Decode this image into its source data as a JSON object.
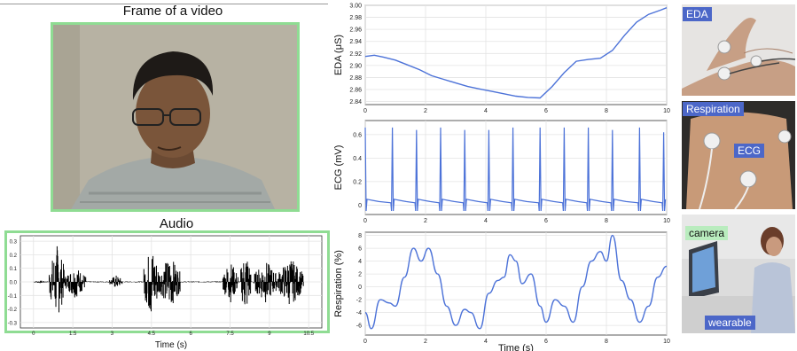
{
  "frame_panel": {
    "title": "Frame of a video"
  },
  "audio_panel": {
    "title": "Audio",
    "xlabel_partial": "Time (s)"
  },
  "photo_panels": {
    "eda_tag": "EDA",
    "respiration_tag": "Respiration",
    "ecg_tag": "ECG",
    "camera_tag": "camera",
    "wearable_tag": "wearable"
  },
  "colors": {
    "signal": "#4c72d8",
    "highlight_border": "#8fdc93",
    "tag_blue": "#4c67c8",
    "tag_green": "#b9ecbe"
  },
  "chart_data": [
    {
      "type": "line",
      "title": "",
      "ylabel": "EDA (μS)",
      "xlim": [
        0,
        10
      ],
      "ylim": [
        2.835,
        3.0
      ],
      "xticks": [
        0,
        2,
        4,
        6,
        8,
        10
      ],
      "yticks": [
        2.84,
        2.86,
        2.88,
        2.9,
        2.92,
        2.94,
        2.96,
        2.98,
        3.0
      ],
      "ytick_labels": [
        "2.84",
        "2.86",
        "2.88",
        "2.90",
        "2.92",
        "2.94",
        "2.96",
        "2.98",
        "3.00"
      ],
      "x": [
        0,
        0.3,
        0.6,
        1.0,
        1.4,
        1.8,
        2.2,
        2.6,
        3.0,
        3.4,
        3.8,
        4.2,
        4.6,
        5.0,
        5.4,
        5.8,
        6.2,
        6.6,
        7.0,
        7.4,
        7.8,
        8.2,
        8.6,
        9.0,
        9.4,
        9.8,
        10.0
      ],
      "y": [
        2.915,
        2.917,
        2.914,
        2.909,
        2.901,
        2.893,
        2.883,
        2.877,
        2.871,
        2.865,
        2.861,
        2.857,
        2.853,
        2.849,
        2.847,
        2.846,
        2.865,
        2.888,
        2.907,
        2.91,
        2.912,
        2.925,
        2.95,
        2.972,
        2.985,
        2.992,
        2.996
      ],
      "grid": true
    },
    {
      "type": "line",
      "title": "",
      "ylabel": "ECG (mV)",
      "xlim": [
        0,
        10
      ],
      "ylim": [
        -0.08,
        0.72
      ],
      "xticks": [
        0,
        2,
        4,
        6,
        8,
        10
      ],
      "yticks": [
        0,
        0.2,
        0.4,
        0.6
      ],
      "ytick_labels": [
        "0",
        "0.2",
        "0.4",
        "0.6"
      ],
      "beat_times": [
        0.0,
        0.9,
        1.7,
        2.5,
        3.3,
        4.1,
        4.9,
        5.8,
        6.6,
        7.4,
        8.2,
        9.1,
        9.9
      ],
      "peak_values": [
        0.66,
        0.66,
        0.64,
        0.66,
        0.64,
        0.64,
        0.66,
        0.66,
        0.66,
        0.66,
        0.64,
        0.66,
        0.62
      ],
      "baseline": 0.02,
      "trough": -0.05,
      "grid": true
    },
    {
      "type": "line",
      "title": "",
      "ylabel": "Respiration (%)",
      "xlabel_partial": "Time (s)",
      "xlim": [
        0,
        10
      ],
      "ylim": [
        -7.5,
        8.5
      ],
      "xticks": [
        0,
        2,
        4,
        6,
        8,
        10
      ],
      "yticks": [
        -6,
        -4,
        -2,
        0,
        2,
        4,
        6,
        8
      ],
      "ytick_labels": [
        "-6",
        "-4",
        "-2",
        "0",
        "2",
        "4",
        "6",
        "8"
      ],
      "x": [
        0,
        0.2,
        0.5,
        0.8,
        1.0,
        1.3,
        1.6,
        1.85,
        2.1,
        2.4,
        2.7,
        3.0,
        3.3,
        3.5,
        3.8,
        4.1,
        4.4,
        4.6,
        4.8,
        5.0,
        5.2,
        5.5,
        5.8,
        6.0,
        6.3,
        6.6,
        6.9,
        7.2,
        7.5,
        7.8,
        8.0,
        8.2,
        8.5,
        8.8,
        9.1,
        9.4,
        9.7,
        10.0
      ],
      "y": [
        -4.0,
        -6.5,
        -2.0,
        -2.5,
        -3.0,
        1.5,
        6.0,
        4.0,
        6.0,
        2.0,
        -3.0,
        -6.0,
        -3.5,
        -4.0,
        -6.5,
        -1.0,
        1.0,
        1.5,
        5.0,
        4.0,
        0.5,
        2.0,
        -3.0,
        -5.5,
        -2.0,
        -3.0,
        -5.5,
        0.0,
        4.0,
        5.5,
        4.0,
        8.0,
        1.0,
        -2.0,
        -5.5,
        -3.0,
        1.5,
        3.2
      ],
      "grid": true
    },
    {
      "type": "line",
      "title": "",
      "xlabel_partial": "Time (s)",
      "xlim": [
        -0.5,
        11.0
      ],
      "ylim": [
        -0.34,
        0.34
      ],
      "xticks": [
        0,
        1.5,
        3,
        4.5,
        6,
        7.5,
        9,
        10.5
      ],
      "xtick_labels": [
        "0",
        "1.5",
        "3",
        "4.5",
        "6",
        "7.5",
        "9",
        "10.5"
      ],
      "yticks": [
        -0.3,
        -0.2,
        -0.1,
        0.0,
        0.1,
        0.2,
        0.3
      ],
      "ytick_labels": [
        "-0.3",
        "-0.2",
        "-0.1",
        "0.0",
        "0.1",
        "0.2",
        "0.3"
      ],
      "bursts": [
        {
          "start": 0.0,
          "end": 0.5,
          "amp": 0.01
        },
        {
          "start": 0.6,
          "end": 1.2,
          "amp": 0.28
        },
        {
          "start": 1.2,
          "end": 2.0,
          "amp": 0.12
        },
        {
          "start": 2.9,
          "end": 3.4,
          "amp": 0.05
        },
        {
          "start": 4.2,
          "end": 4.8,
          "amp": 0.28
        },
        {
          "start": 4.8,
          "end": 5.6,
          "amp": 0.2
        },
        {
          "start": 7.2,
          "end": 7.8,
          "amp": 0.16
        },
        {
          "start": 7.9,
          "end": 8.3,
          "amp": 0.26
        },
        {
          "start": 8.4,
          "end": 9.3,
          "amp": 0.16
        },
        {
          "start": 9.3,
          "end": 10.3,
          "amp": 0.18
        }
      ],
      "grid": true
    }
  ]
}
